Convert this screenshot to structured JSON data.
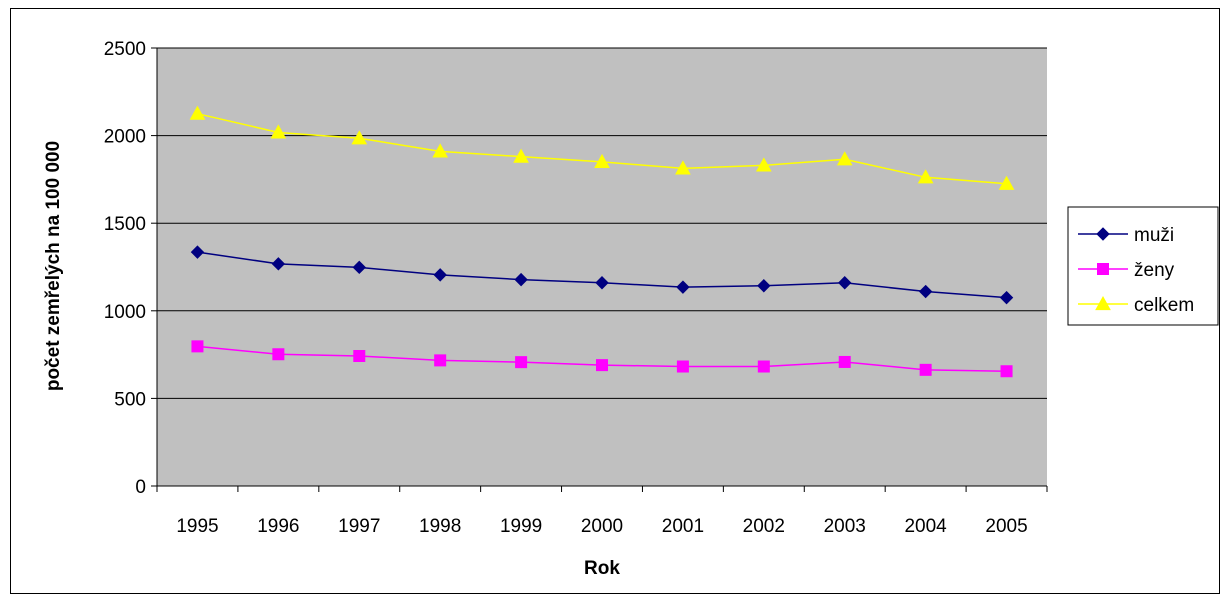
{
  "chart_data": {
    "type": "line",
    "title": "",
    "xlabel": "Rok",
    "ylabel": "počet zemřelých na 100 000",
    "categories": [
      "1995",
      "1996",
      "1997",
      "1998",
      "1999",
      "2000",
      "2001",
      "2002",
      "2003",
      "2004",
      "2005"
    ],
    "ylim": [
      0,
      2500
    ],
    "yticks": [
      0,
      500,
      1000,
      1500,
      2000,
      2500
    ],
    "grid": true,
    "plot_background": "#c0c0c0",
    "legend_position": "right",
    "series": [
      {
        "name": "muži",
        "color": "#000080",
        "marker": "diamond",
        "values": [
          1335,
          1268,
          1248,
          1205,
          1178,
          1160,
          1135,
          1143,
          1160,
          1110,
          1075
        ]
      },
      {
        "name": "ženy",
        "color": "#ff00ff",
        "marker": "square",
        "values": [
          797,
          752,
          742,
          717,
          707,
          690,
          682,
          682,
          708,
          663,
          655
        ]
      },
      {
        "name": "celkem",
        "color": "#ffff00",
        "marker": "triangle",
        "values": [
          2125,
          2018,
          1985,
          1910,
          1880,
          1850,
          1813,
          1830,
          1865,
          1762,
          1725
        ]
      }
    ]
  }
}
